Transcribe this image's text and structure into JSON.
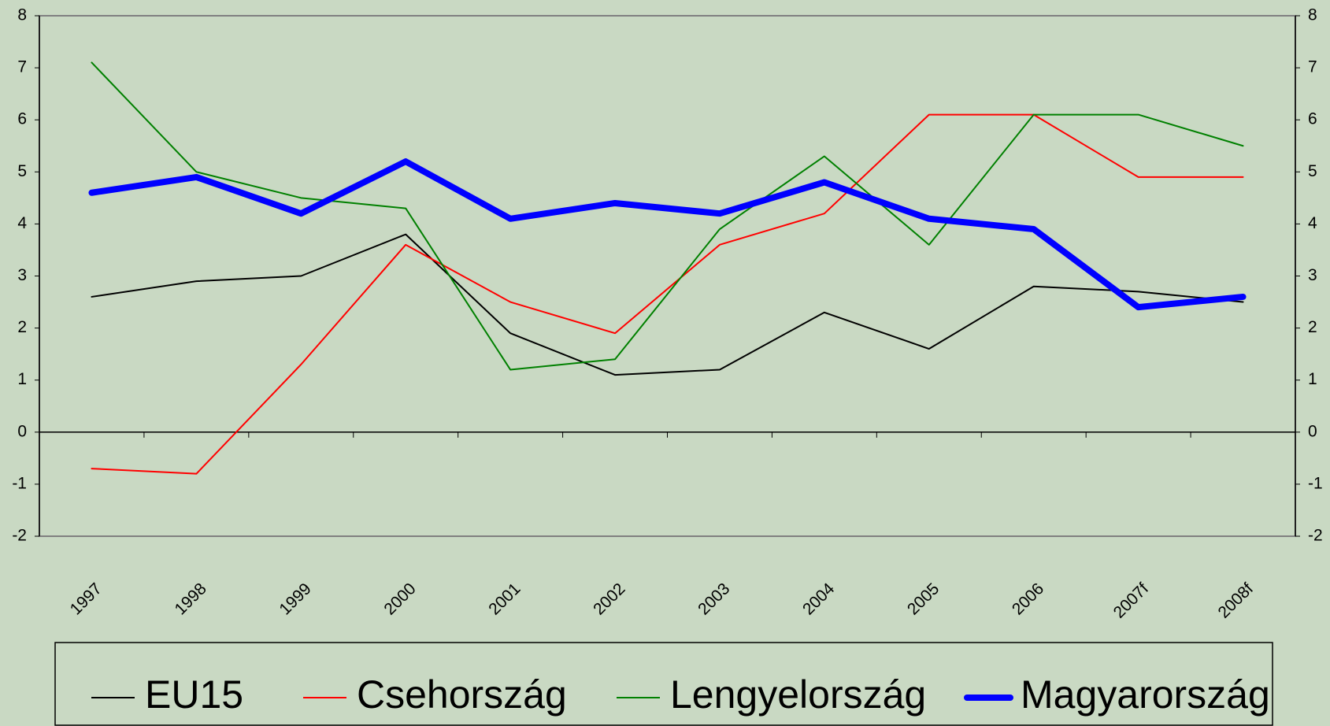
{
  "chart_data": {
    "type": "line",
    "categories": [
      "1997",
      "1998",
      "1999",
      "2000",
      "2001",
      "2002",
      "2003",
      "2004",
      "2005",
      "2006",
      "2007f",
      "2008f"
    ],
    "series": [
      {
        "name": "EU15",
        "color": "#000000",
        "values": [
          2.6,
          2.9,
          3.0,
          3.8,
          1.9,
          1.1,
          1.2,
          2.3,
          1.6,
          2.8,
          2.7,
          2.5
        ]
      },
      {
        "name": "Csehország",
        "color": "#ff0000",
        "values": [
          -0.7,
          -0.8,
          1.3,
          3.6,
          2.5,
          1.9,
          3.6,
          4.2,
          6.1,
          6.1,
          4.9,
          4.9
        ]
      },
      {
        "name": "Lengyelország",
        "color": "#008000",
        "values": [
          7.1,
          5.0,
          4.5,
          4.3,
          1.2,
          1.4,
          3.9,
          5.3,
          3.6,
          6.1,
          6.1,
          5.5
        ]
      },
      {
        "name": "Magyarország",
        "color": "#0000ff",
        "values": [
          4.6,
          4.9,
          4.2,
          5.2,
          4.1,
          4.4,
          4.2,
          4.8,
          4.1,
          3.9,
          2.4,
          2.6
        ]
      }
    ],
    "ylim": [
      -2,
      8
    ],
    "yticks": [
      -2,
      -1,
      0,
      1,
      2,
      3,
      4,
      5,
      6,
      7,
      8
    ],
    "y2lim": [
      -2,
      8
    ],
    "y2ticks": [
      -2,
      -1,
      0,
      1,
      2,
      3,
      4,
      5,
      6,
      7,
      8
    ],
    "legend": "bottom"
  }
}
